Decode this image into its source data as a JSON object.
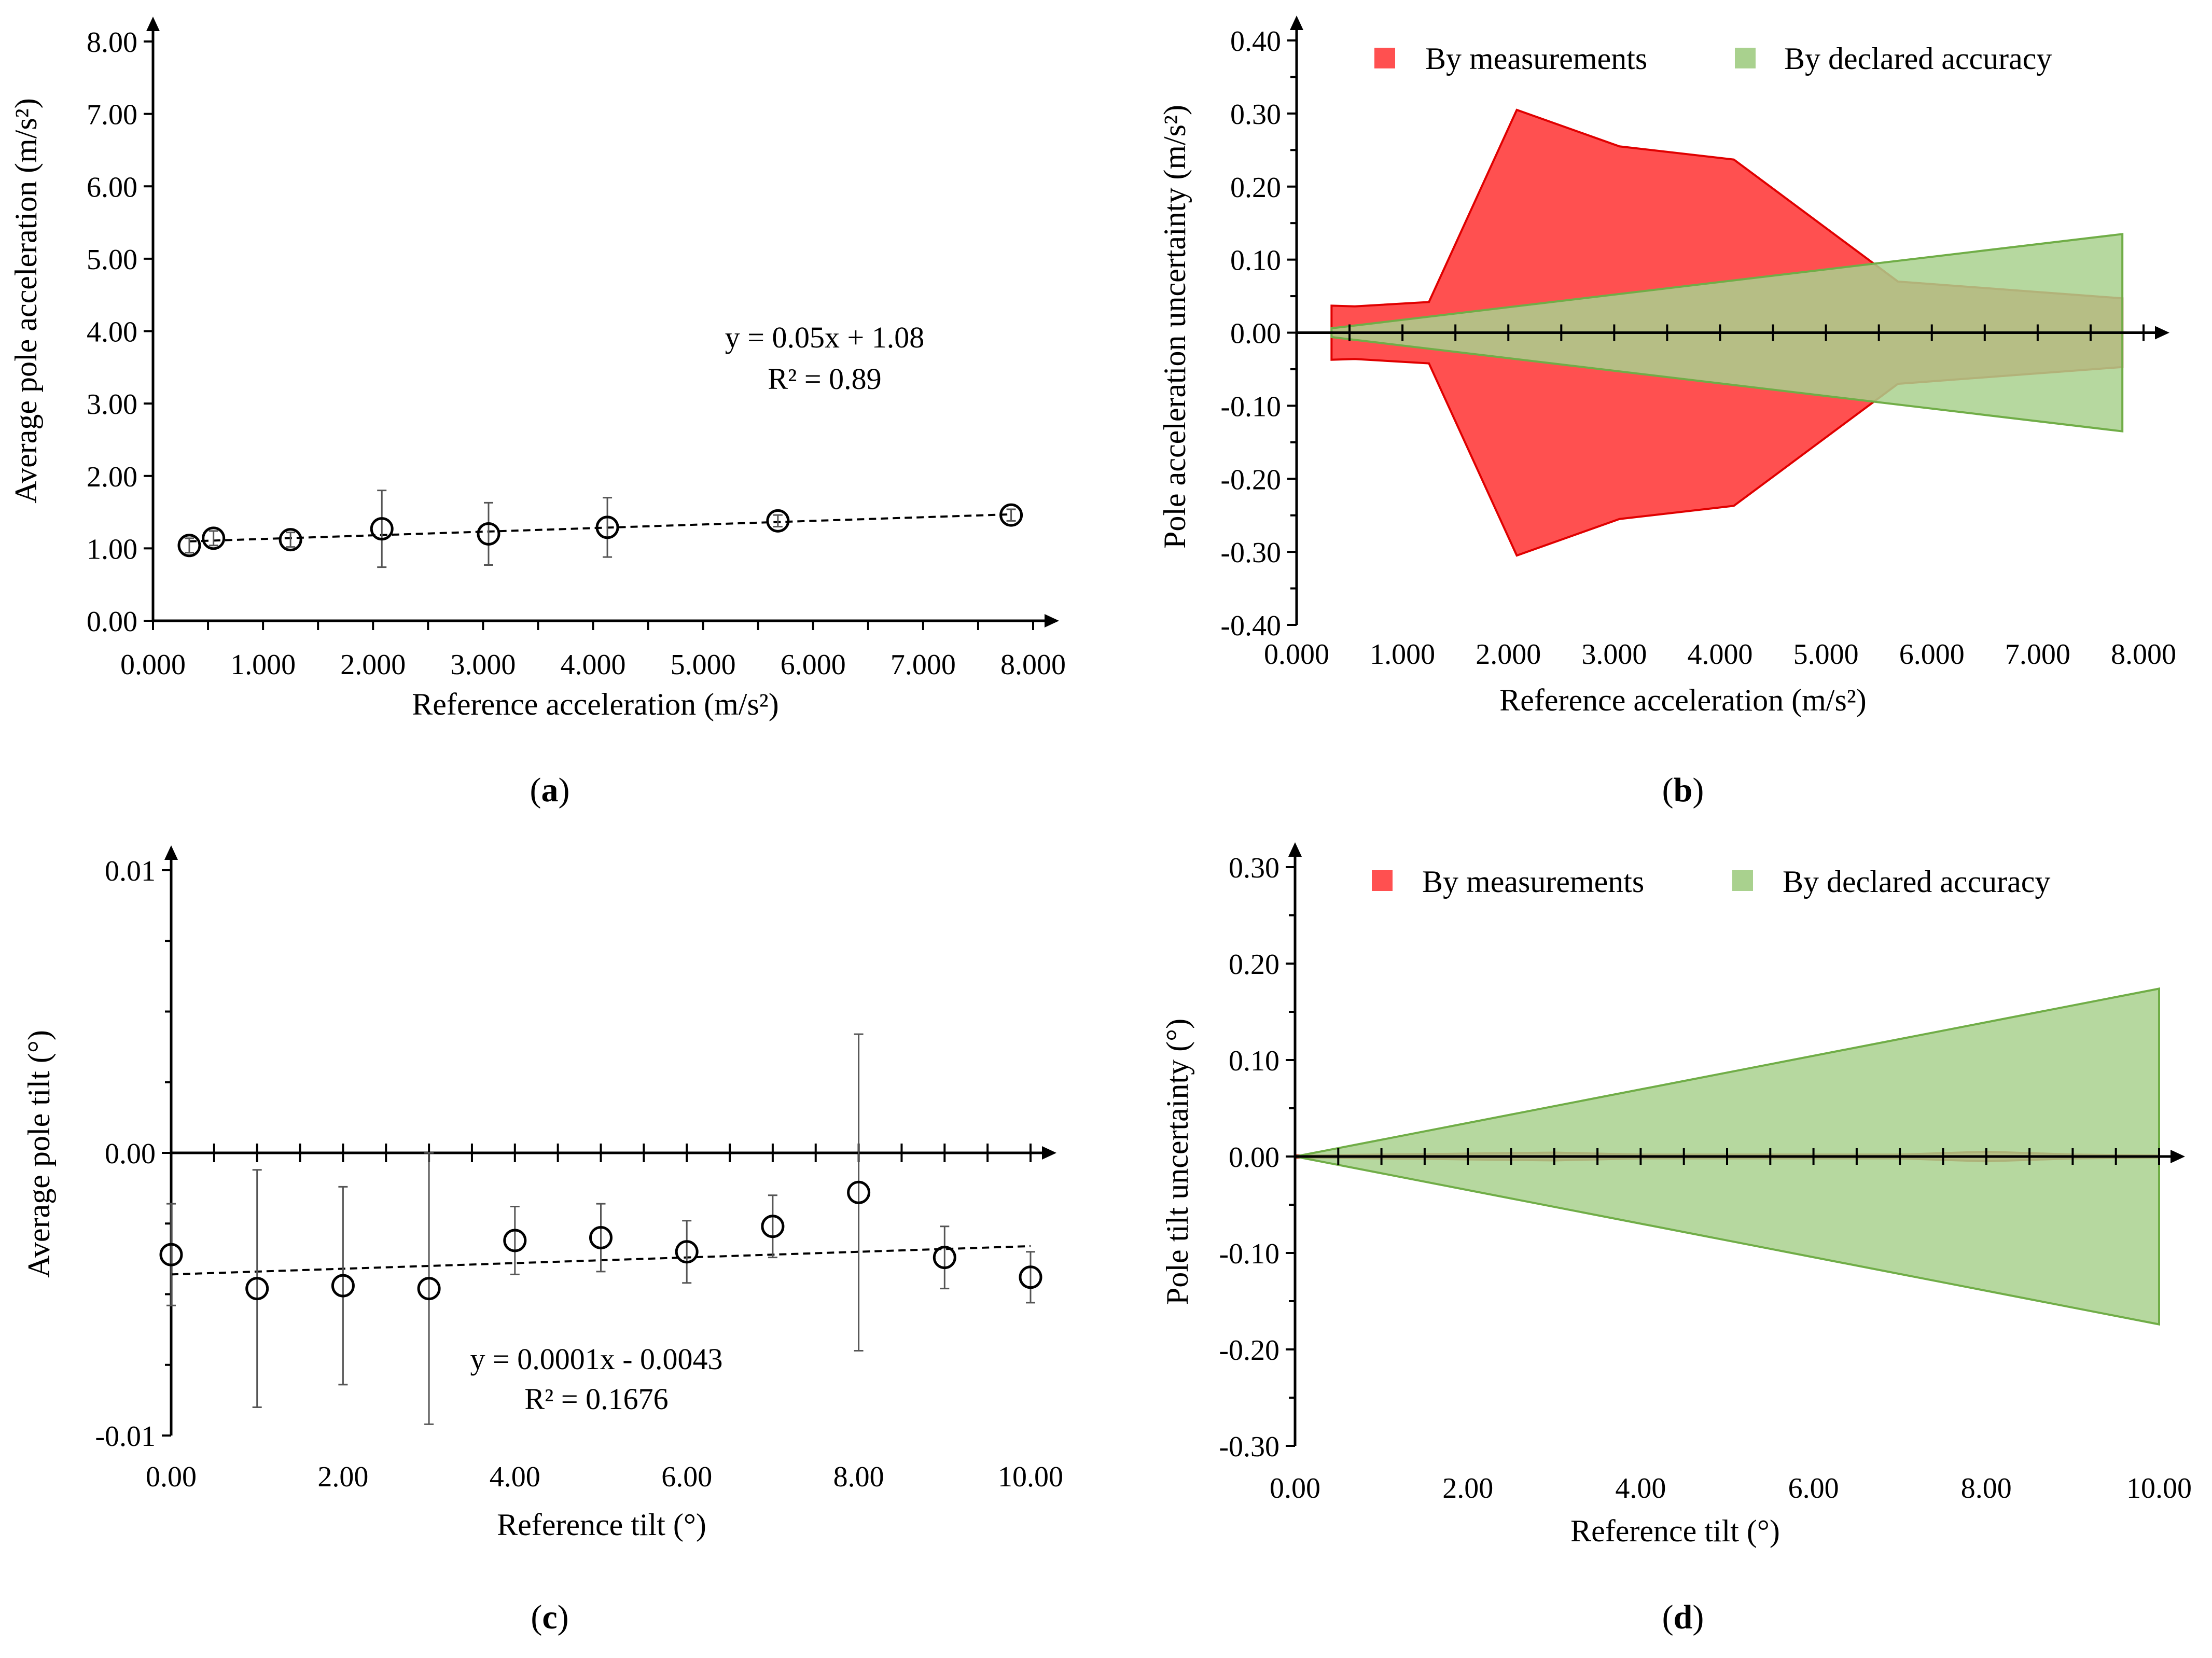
{
  "chart_data": [
    {
      "id": "a",
      "type": "scatter",
      "panel_label": "a",
      "xlabel": "Reference acceleration (m/s²)",
      "ylabel": "Average pole acceleration (m/s²)",
      "xlim": [
        0,
        8
      ],
      "ylim": [
        0,
        8
      ],
      "x_ticks": [
        "0.000",
        "1.000",
        "2.000",
        "3.000",
        "4.000",
        "5.000",
        "6.000",
        "7.000",
        "8.000"
      ],
      "y_ticks": [
        "0.00",
        "1.00",
        "2.00",
        "3.00",
        "4.00",
        "5.00",
        "6.00",
        "7.00",
        "8.00"
      ],
      "points": [
        {
          "x": 0.33,
          "y": 1.04,
          "err": 0.1
        },
        {
          "x": 0.55,
          "y": 1.14,
          "err": 0.1
        },
        {
          "x": 1.25,
          "y": 1.12,
          "err": 0.1
        },
        {
          "x": 2.08,
          "y": 1.27,
          "err": 0.53
        },
        {
          "x": 3.05,
          "y": 1.2,
          "err": 0.43
        },
        {
          "x": 4.13,
          "y": 1.29,
          "err": 0.41
        },
        {
          "x": 5.68,
          "y": 1.38,
          "err": 0.08
        },
        {
          "x": 7.8,
          "y": 1.46,
          "err": 0.08
        }
      ],
      "trendline": {
        "slope": 0.05,
        "intercept": 1.08,
        "x_range": [
          0.33,
          7.8
        ]
      },
      "equation": "y = 0.05x + 1.08",
      "r_squared": "R² = 0.89"
    },
    {
      "id": "b",
      "type": "area",
      "panel_label": "b",
      "xlabel": "Reference acceleration (m/s²)",
      "ylabel": "Pole acceleration uncertainty (m/s²)",
      "xlim": [
        0,
        8
      ],
      "ylim": [
        -0.4,
        0.4
      ],
      "x_ticks": [
        "0.000",
        "1.000",
        "2.000",
        "3.000",
        "4.000",
        "5.000",
        "6.000",
        "7.000",
        "8.000"
      ],
      "y_ticks": [
        "-0.40",
        "-0.30",
        "-0.20",
        "-0.10",
        "0.00",
        "0.10",
        "0.20",
        "0.30",
        "0.40"
      ],
      "legend": [
        "By measurements",
        "By declared accuracy"
      ],
      "colors": {
        "measured": "#ff5050",
        "measured_edge": "#e00000",
        "declared": "#a9d18e",
        "declared_edge": "#70ad47"
      },
      "series": [
        {
          "name": "By measurements",
          "x": [
            0.33,
            0.55,
            1.25,
            2.08,
            3.05,
            4.13,
            5.68,
            7.8
          ],
          "values": [
            0.037,
            0.036,
            0.042,
            0.305,
            0.255,
            0.237,
            0.07,
            0.047
          ]
        },
        {
          "name": "By declared accuracy",
          "x": [
            0.33,
            7.8
          ],
          "values": [
            0.006,
            0.135
          ]
        }
      ]
    },
    {
      "id": "c",
      "type": "scatter",
      "panel_label": "c",
      "xlabel": "Reference tilt (°)",
      "ylabel": "Average pole tilt (°)",
      "xlim": [
        0,
        10
      ],
      "ylim": [
        -0.01,
        0.01
      ],
      "x_ticks": [
        "0.00",
        "2.00",
        "4.00",
        "6.00",
        "8.00",
        "10.00"
      ],
      "y_ticks": [
        "-0.01",
        "0.00",
        "0.01"
      ],
      "points": [
        {
          "x": 0,
          "y": -0.0036,
          "err": 0.0018
        },
        {
          "x": 1,
          "y": -0.0048,
          "err": 0.0042
        },
        {
          "x": 2,
          "y": -0.0047,
          "err": 0.0035
        },
        {
          "x": 3,
          "y": -0.0048,
          "err": 0.0048
        },
        {
          "x": 4,
          "y": -0.0031,
          "err": 0.0012
        },
        {
          "x": 5,
          "y": -0.003,
          "err": 0.0012
        },
        {
          "x": 6,
          "y": -0.0035,
          "err": 0.0011
        },
        {
          "x": 7,
          "y": -0.0026,
          "err": 0.0011
        },
        {
          "x": 8,
          "y": -0.0014,
          "err": 0.0056
        },
        {
          "x": 9,
          "y": -0.0037,
          "err": 0.0011
        },
        {
          "x": 10,
          "y": -0.0044,
          "err": 0.0009
        }
      ],
      "trendline": {
        "slope": 0.0001,
        "intercept": -0.0043,
        "x_range": [
          0,
          10
        ]
      },
      "equation": "y = 0.0001x - 0.0043",
      "r_squared": "R² = 0.1676"
    },
    {
      "id": "d",
      "type": "area",
      "panel_label": "d",
      "xlabel": "Reference tilt (°)",
      "ylabel": "Pole tilt uncertainty (°)",
      "xlim": [
        0,
        10
      ],
      "ylim": [
        -0.3,
        0.3
      ],
      "x_ticks": [
        "0.00",
        "2.00",
        "4.00",
        "6.00",
        "8.00",
        "10.00"
      ],
      "y_ticks": [
        "-0.30",
        "-0.20",
        "-0.10",
        "0.00",
        "0.10",
        "0.20",
        "0.30"
      ],
      "legend": [
        "By measurements",
        "By declared accuracy"
      ],
      "colors": {
        "measured": "#ff5050",
        "measured_edge": "#c00000",
        "declared": "#a9d18e",
        "declared_edge": "#70ad47"
      },
      "series": [
        {
          "name": "By measurements",
          "x": [
            0,
            1,
            2,
            3,
            4,
            5,
            6,
            7,
            8,
            9,
            10
          ],
          "values": [
            0.001,
            0.002,
            0.003,
            0.004,
            0.002,
            0.002,
            0.002,
            0.002,
            0.005,
            0.002,
            0.001
          ]
        },
        {
          "name": "By declared accuracy",
          "x": [
            0,
            10
          ],
          "values": [
            0.0,
            0.174
          ]
        }
      ]
    }
  ]
}
